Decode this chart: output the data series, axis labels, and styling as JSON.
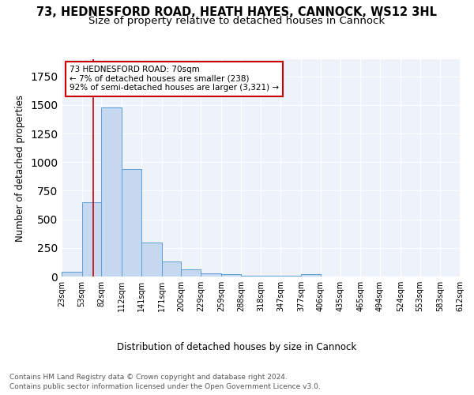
{
  "title_line1": "73, HEDNESFORD ROAD, HEATH HAYES, CANNOCK, WS12 3HL",
  "title_line2": "Size of property relative to detached houses in Cannock",
  "xlabel": "Distribution of detached houses by size in Cannock",
  "ylabel": "Number of detached properties",
  "bar_edges": [
    23,
    53,
    82,
    112,
    141,
    171,
    200,
    229,
    259,
    288,
    318,
    347,
    377,
    406,
    435,
    465,
    494,
    524,
    553,
    583,
    612
  ],
  "bar_heights": [
    40,
    650,
    1480,
    940,
    295,
    130,
    65,
    25,
    20,
    5,
    5,
    5,
    20,
    0,
    0,
    0,
    0,
    0,
    0,
    0
  ],
  "bar_color": "#c5d8f0",
  "bar_edge_color": "#5a9fd4",
  "vline_x": 70,
  "vline_color": "#cc0000",
  "annotation_text": "73 HEDNESFORD ROAD: 70sqm\n← 7% of detached houses are smaller (238)\n92% of semi-detached houses are larger (3,321) →",
  "annotation_box_color": "#ffffff",
  "annotation_edge_color": "#cc0000",
  "ylim": [
    0,
    1900
  ],
  "tick_labels": [
    "23sqm",
    "53sqm",
    "82sqm",
    "112sqm",
    "141sqm",
    "171sqm",
    "200sqm",
    "229sqm",
    "259sqm",
    "288sqm",
    "318sqm",
    "347sqm",
    "377sqm",
    "406sqm",
    "435sqm",
    "465sqm",
    "494sqm",
    "524sqm",
    "553sqm",
    "583sqm",
    "612sqm"
  ],
  "footnote_line1": "Contains HM Land Registry data © Crown copyright and database right 2024.",
  "footnote_line2": "Contains public sector information licensed under the Open Government Licence v3.0.",
  "bg_color": "#eef2fa",
  "grid_color": "#ffffff",
  "title_fontsize": 10.5,
  "subtitle_fontsize": 9.5,
  "axis_label_fontsize": 8.5,
  "tick_fontsize": 7,
  "footnote_fontsize": 6.5,
  "annotation_fontsize": 7.5
}
